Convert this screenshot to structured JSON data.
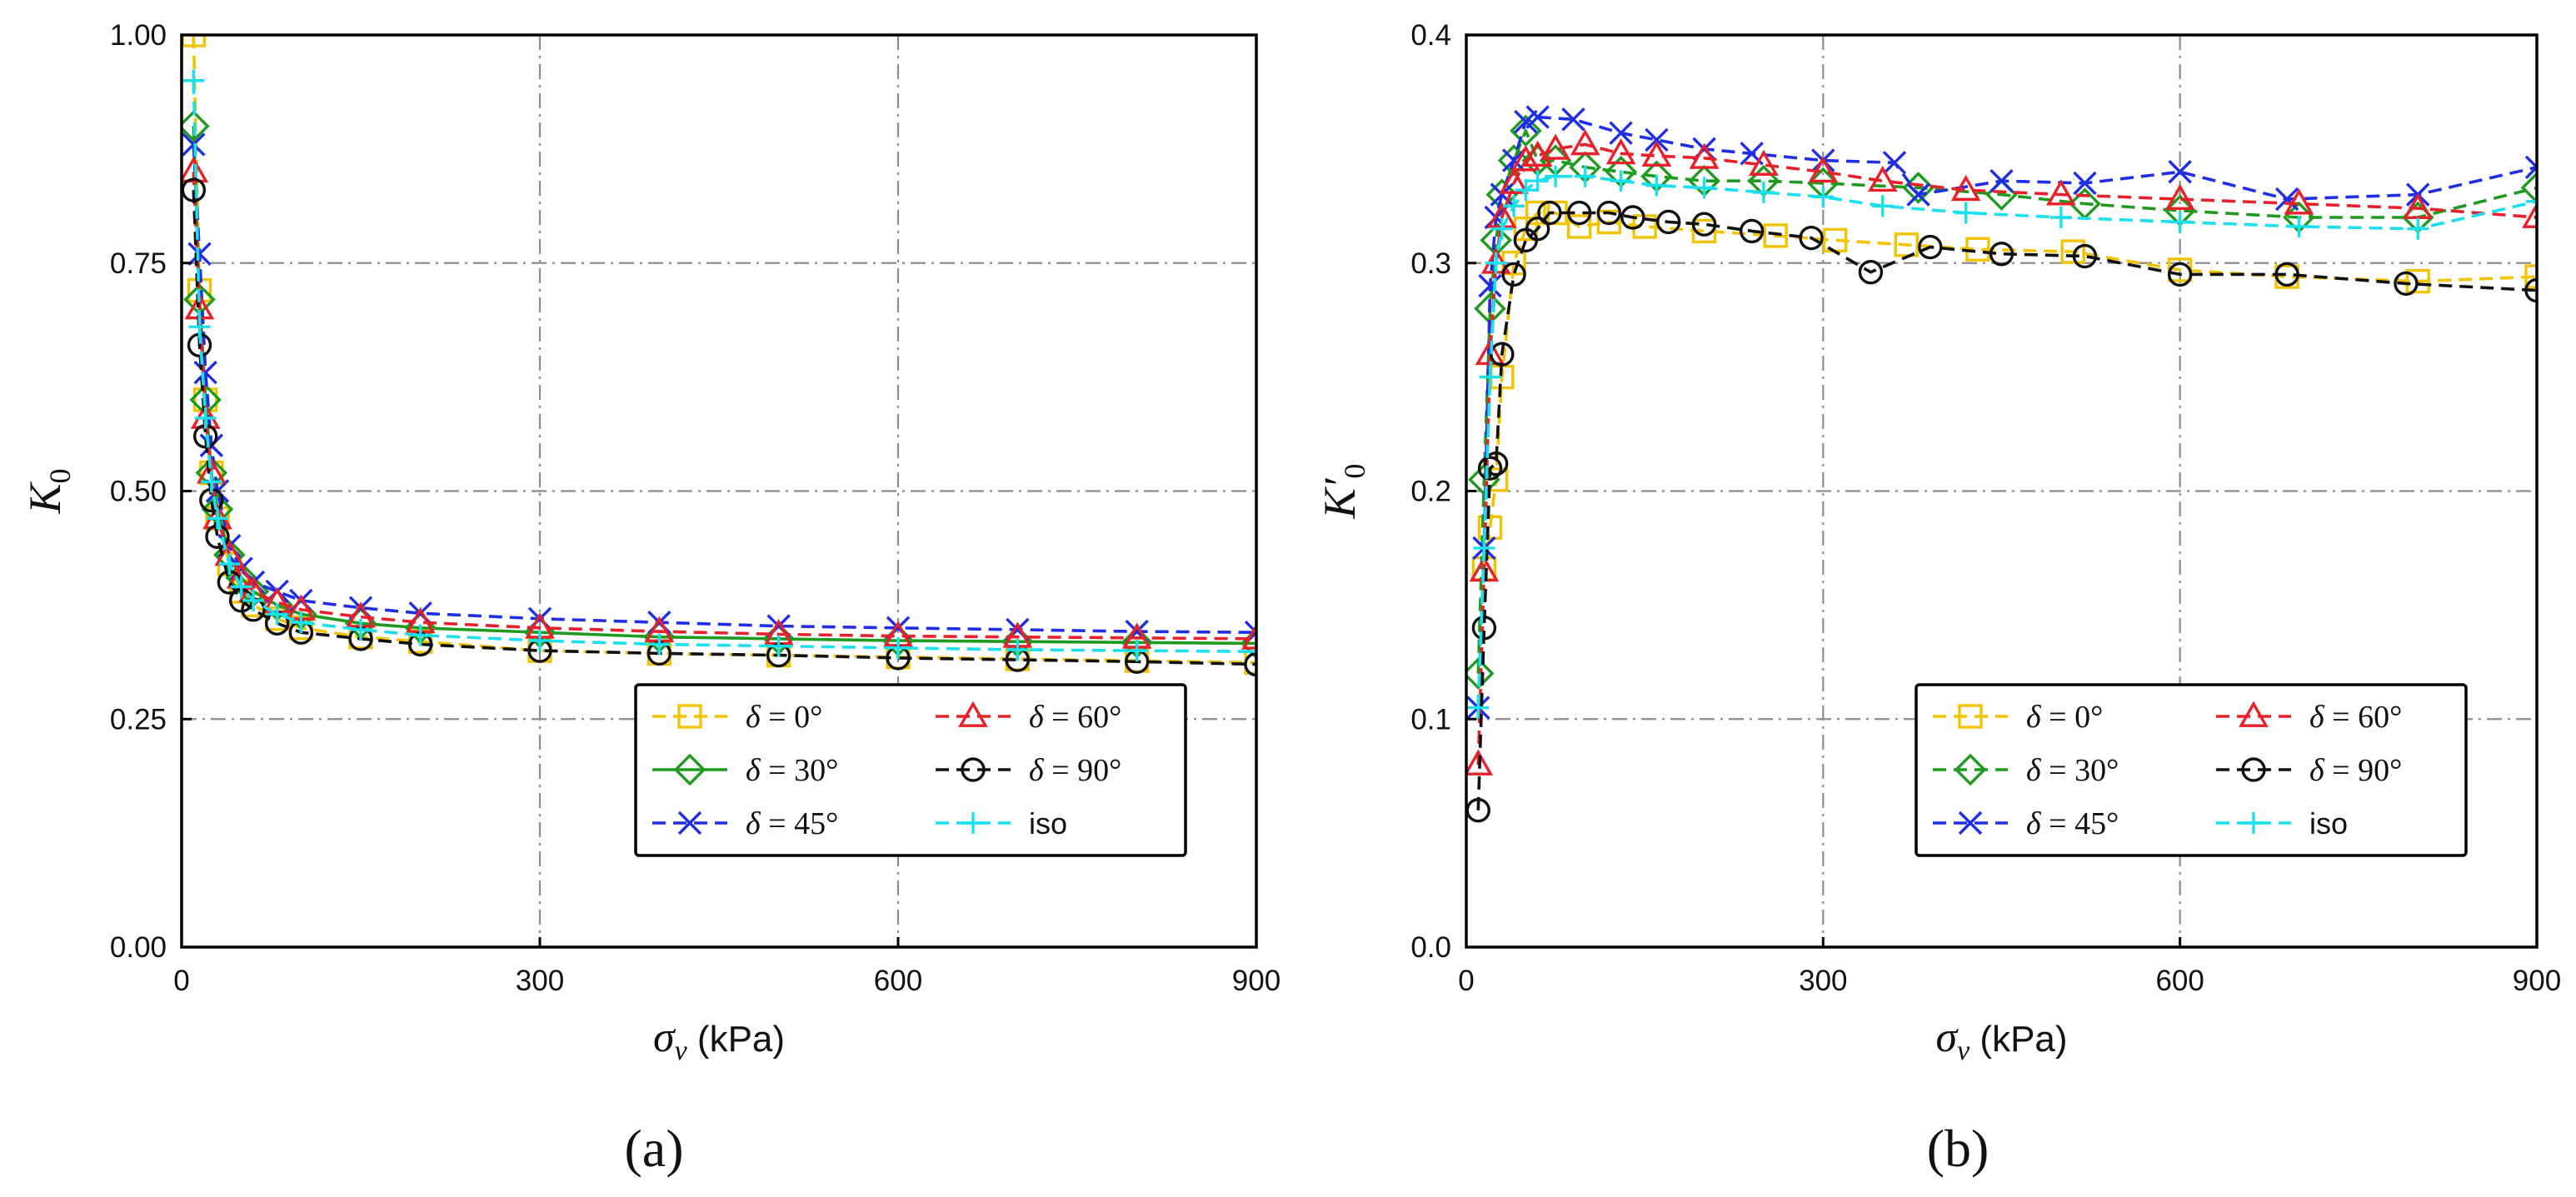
{
  "colors": {
    "delta_0": "#f2c400",
    "delta_30": "#1e9a1e",
    "delta_45": "#1f2ee6",
    "delta_60": "#e8202a",
    "delta_90": "#111111",
    "iso": "#19e0ec",
    "grid": "#8c8c8c"
  },
  "chart_data": [
    {
      "type": "line",
      "panel_label": "(a)",
      "xlabel": "σv (kPa)",
      "xlabel_main": "σ",
      "xlabel_sub": "v",
      "xlabel_unit": " (kPa)",
      "ylabel": "K0",
      "ylabel_main": "K",
      "ylabel_sub": "0",
      "xlim": [
        0,
        900
      ],
      "ylim": [
        0,
        1.0
      ],
      "xticks": [
        0,
        300,
        600,
        900
      ],
      "xtick_labels": [
        "0",
        "300",
        "600",
        "900"
      ],
      "yticks": [
        0,
        0.25,
        0.5,
        0.75,
        1.0
      ],
      "ytick_labels": [
        "0.00",
        "0.25",
        "0.50",
        "0.75",
        "1.00"
      ],
      "grid": true,
      "legend_position": "lower-right",
      "legend": [
        {
          "key": "d0",
          "math": "δ",
          "eq": " = 0°"
        },
        {
          "key": "d60",
          "math": "δ",
          "eq": " = 60°"
        },
        {
          "key": "d30",
          "math": "δ",
          "eq": " = 30°"
        },
        {
          "key": "d90",
          "math": "δ",
          "eq": " = 90°"
        },
        {
          "key": "d45",
          "math": "δ",
          "eq": " = 45°"
        },
        {
          "key": "iso",
          "math": "",
          "eq": "iso"
        }
      ],
      "series": [
        {
          "key": "d0",
          "name": "δ = 0°",
          "marker": "square",
          "style": "dashed",
          "x": [
            10,
            15,
            20,
            25,
            30,
            40,
            50,
            60,
            80,
            100,
            150,
            200,
            300,
            400,
            500,
            600,
            700,
            800,
            900
          ],
          "values": [
            1.0,
            0.72,
            0.6,
            0.52,
            0.47,
            0.42,
            0.39,
            0.375,
            0.36,
            0.35,
            0.34,
            0.335,
            0.325,
            0.322,
            0.32,
            0.318,
            0.316,
            0.314,
            0.312
          ]
        },
        {
          "key": "d30",
          "name": "δ = 30°",
          "marker": "diamond",
          "style": "solid",
          "x": [
            10,
            15,
            20,
            25,
            30,
            40,
            50,
            60,
            80,
            100,
            150,
            200,
            300,
            400,
            500,
            600,
            700,
            800,
            900
          ],
          "values": [
            0.9,
            0.71,
            0.6,
            0.52,
            0.48,
            0.43,
            0.405,
            0.39,
            0.375,
            0.365,
            0.355,
            0.35,
            0.345,
            0.34,
            0.338,
            0.336,
            0.335,
            0.334,
            0.333
          ]
        },
        {
          "key": "d45",
          "name": "δ = 45°",
          "marker": "x",
          "style": "dashed",
          "x": [
            10,
            15,
            20,
            25,
            30,
            40,
            50,
            60,
            80,
            100,
            150,
            200,
            300,
            400,
            500,
            600,
            700,
            800,
            900
          ],
          "values": [
            0.88,
            0.76,
            0.63,
            0.55,
            0.5,
            0.44,
            0.415,
            0.4,
            0.39,
            0.38,
            0.372,
            0.366,
            0.36,
            0.356,
            0.352,
            0.35,
            0.348,
            0.346,
            0.345
          ]
        },
        {
          "key": "d60",
          "name": "δ = 60°",
          "marker": "triangle",
          "style": "dashed",
          "x": [
            10,
            15,
            20,
            25,
            30,
            40,
            50,
            60,
            80,
            100,
            150,
            200,
            300,
            400,
            500,
            600,
            700,
            800,
            900
          ],
          "values": [
            0.85,
            0.7,
            0.58,
            0.52,
            0.47,
            0.43,
            0.405,
            0.39,
            0.378,
            0.37,
            0.362,
            0.356,
            0.35,
            0.346,
            0.343,
            0.341,
            0.34,
            0.339,
            0.338
          ]
        },
        {
          "key": "d90",
          "name": "δ = 90°",
          "marker": "circle",
          "style": "dashed",
          "x": [
            10,
            15,
            20,
            25,
            30,
            40,
            50,
            60,
            80,
            100,
            150,
            200,
            300,
            400,
            500,
            600,
            700,
            800,
            900
          ],
          "values": [
            0.83,
            0.66,
            0.56,
            0.49,
            0.45,
            0.4,
            0.38,
            0.37,
            0.355,
            0.345,
            0.338,
            0.332,
            0.325,
            0.322,
            0.32,
            0.317,
            0.315,
            0.313,
            0.31
          ]
        },
        {
          "key": "iso",
          "name": "iso",
          "marker": "plus",
          "style": "dashed",
          "x": [
            10,
            15,
            20,
            25,
            30,
            40,
            50,
            60,
            80,
            100,
            150,
            200,
            300,
            400,
            500,
            600,
            700,
            800,
            900
          ],
          "values": [
            0.95,
            0.68,
            0.58,
            0.51,
            0.47,
            0.42,
            0.395,
            0.38,
            0.365,
            0.356,
            0.348,
            0.342,
            0.336,
            0.332,
            0.33,
            0.328,
            0.326,
            0.325,
            0.324
          ]
        }
      ]
    },
    {
      "type": "line",
      "panel_label": "(b)",
      "xlabel": "σv (kPa)",
      "xlabel_main": "σ",
      "xlabel_sub": "v",
      "xlabel_unit": " (kPa)",
      "ylabel": "K′0",
      "ylabel_main": "K′",
      "ylabel_sub": "0",
      "xlim": [
        0,
        900
      ],
      "ylim": [
        0,
        0.4
      ],
      "xticks": [
        0,
        300,
        600,
        900
      ],
      "xtick_labels": [
        "0",
        "300",
        "600",
        "900"
      ],
      "yticks": [
        0,
        0.1,
        0.2,
        0.3,
        0.4
      ],
      "ytick_labels": [
        "0.0",
        "0.1",
        "0.2",
        "0.3",
        "0.4"
      ],
      "grid": true,
      "legend_position": "lower-right",
      "legend": [
        {
          "key": "d0",
          "math": "δ",
          "eq": " = 0°"
        },
        {
          "key": "d60",
          "math": "δ",
          "eq": " = 60°"
        },
        {
          "key": "d30",
          "math": "δ",
          "eq": " = 30°"
        },
        {
          "key": "d90",
          "math": "δ",
          "eq": " = 90°"
        },
        {
          "key": "d45",
          "math": "δ",
          "eq": " = 45°"
        },
        {
          "key": "iso",
          "math": "",
          "eq": "iso"
        }
      ],
      "series": [
        {
          "key": "d0",
          "name": "δ = 0°",
          "marker": "square",
          "style": "dashed",
          "x": [
            15,
            20,
            25,
            30,
            40,
            50,
            60,
            75,
            95,
            120,
            150,
            200,
            260,
            310,
            370,
            430,
            510,
            600,
            690,
            800,
            900
          ],
          "values": [
            0.166,
            0.184,
            0.205,
            0.25,
            0.3,
            0.315,
            0.322,
            0.322,
            0.316,
            0.318,
            0.316,
            0.314,
            0.312,
            0.31,
            0.308,
            0.306,
            0.305,
            0.297,
            0.294,
            0.292,
            0.294
          ]
        },
        {
          "key": "d30",
          "name": "δ = 30°",
          "marker": "diamond",
          "style": "dashed",
          "x": [
            10,
            15,
            20,
            25,
            30,
            40,
            50,
            60,
            75,
            100,
            130,
            160,
            200,
            250,
            300,
            380,
            450,
            520,
            600,
            700,
            800,
            900
          ],
          "values": [
            0.12,
            0.205,
            0.28,
            0.31,
            0.33,
            0.345,
            0.358,
            0.345,
            0.345,
            0.342,
            0.34,
            0.338,
            0.336,
            0.336,
            0.335,
            0.333,
            0.33,
            0.326,
            0.323,
            0.32,
            0.32,
            0.333
          ]
        },
        {
          "key": "d45",
          "name": "δ = 45°",
          "marker": "x",
          "style": "dashed",
          "x": [
            10,
            15,
            20,
            25,
            30,
            40,
            50,
            60,
            90,
            130,
            160,
            200,
            240,
            300,
            360,
            380,
            450,
            520,
            600,
            690,
            800,
            900
          ],
          "values": [
            0.105,
            0.175,
            0.29,
            0.32,
            0.33,
            0.345,
            0.362,
            0.364,
            0.363,
            0.357,
            0.354,
            0.35,
            0.348,
            0.345,
            0.344,
            0.33,
            0.336,
            0.335,
            0.34,
            0.328,
            0.33,
            0.342
          ]
        },
        {
          "key": "d60",
          "name": "δ = 60°",
          "marker": "triangle",
          "style": "dashed",
          "x": [
            10,
            15,
            20,
            25,
            30,
            40,
            50,
            60,
            75,
            100,
            130,
            160,
            200,
            250,
            300,
            350,
            420,
            500,
            600,
            700,
            800,
            900
          ],
          "values": [
            0.08,
            0.165,
            0.26,
            0.3,
            0.32,
            0.335,
            0.345,
            0.347,
            0.35,
            0.352,
            0.348,
            0.347,
            0.346,
            0.343,
            0.34,
            0.336,
            0.332,
            0.33,
            0.328,
            0.326,
            0.324,
            0.32
          ]
        },
        {
          "key": "d90",
          "name": "δ = 90°",
          "marker": "circle",
          "style": "dashed",
          "x": [
            10,
            15,
            20,
            25,
            30,
            40,
            50,
            60,
            70,
            95,
            120,
            140,
            170,
            200,
            240,
            290,
            340,
            390,
            450,
            520,
            600,
            690,
            790,
            900
          ],
          "values": [
            0.06,
            0.14,
            0.21,
            0.212,
            0.26,
            0.295,
            0.31,
            0.315,
            0.322,
            0.322,
            0.322,
            0.32,
            0.318,
            0.317,
            0.314,
            0.311,
            0.296,
            0.307,
            0.304,
            0.303,
            0.295,
            0.295,
            0.291,
            0.288
          ]
        },
        {
          "key": "iso",
          "name": "iso",
          "marker": "plus",
          "style": "dashed",
          "x": [
            10,
            15,
            20,
            25,
            30,
            40,
            50,
            60,
            75,
            100,
            130,
            160,
            200,
            250,
            300,
            350,
            420,
            500,
            600,
            700,
            800,
            900
          ],
          "values": [
            0.105,
            0.175,
            0.25,
            0.3,
            0.315,
            0.325,
            0.332,
            0.336,
            0.338,
            0.338,
            0.336,
            0.334,
            0.333,
            0.331,
            0.329,
            0.325,
            0.322,
            0.32,
            0.318,
            0.316,
            0.315,
            0.327
          ]
        }
      ]
    }
  ]
}
